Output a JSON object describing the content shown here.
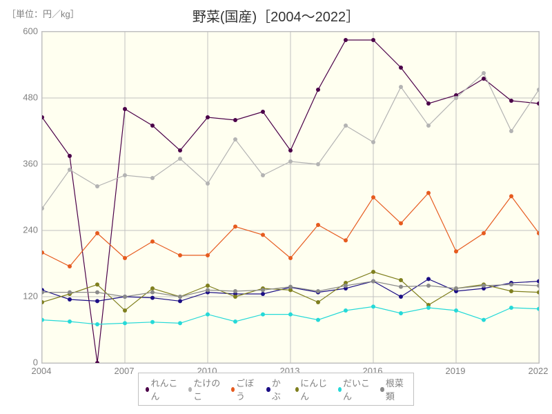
{
  "chart": {
    "title": "野菜(国産)［2004～2022］",
    "y_unit_label": "［単位：円／kg］",
    "title_fontsize": 20,
    "label_fontsize": 13,
    "plot_bg": "#fffff0",
    "page_bg": "#ffffff",
    "grid_color": "#c0c0c0",
    "axis_text_color": "#808080",
    "type": "line",
    "xlim": [
      2004,
      2022
    ],
    "ylim": [
      0,
      600
    ],
    "x_ticks": [
      2004,
      2007,
      2010,
      2013,
      2016,
      2019,
      2022
    ],
    "y_ticks": [
      0,
      120,
      240,
      360,
      480,
      600
    ],
    "x_values": [
      2004,
      2005,
      2006,
      2007,
      2008,
      2009,
      2010,
      2011,
      2012,
      2013,
      2014,
      2015,
      2016,
      2017,
      2018,
      2019,
      2020,
      2021,
      2022
    ],
    "marker_radius": 3,
    "line_width": 1.2,
    "series": [
      {
        "name": "れんこん",
        "color": "#4b0049",
        "values": [
          445,
          375,
          0,
          460,
          430,
          385,
          445,
          440,
          455,
          385,
          495,
          585,
          585,
          535,
          470,
          485,
          515,
          475,
          470
        ]
      },
      {
        "name": "たけのこ",
        "color": "#b3b3b3",
        "values": [
          280,
          350,
          320,
          340,
          335,
          370,
          325,
          405,
          340,
          365,
          360,
          430,
          400,
          500,
          430,
          480,
          525,
          420,
          495
        ]
      },
      {
        "name": "ごぼう",
        "color": "#e65b1f",
        "values": [
          200,
          175,
          235,
          190,
          220,
          195,
          195,
          247,
          232,
          190,
          250,
          222,
          300,
          253,
          308,
          202,
          235,
          302,
          235
        ]
      },
      {
        "name": "かぶ",
        "color": "#1b0e85",
        "values": [
          132,
          115,
          112,
          120,
          118,
          112,
          128,
          125,
          125,
          137,
          128,
          135,
          148,
          120,
          152,
          130,
          135,
          145,
          148
        ]
      },
      {
        "name": "にんじん",
        "color": "#7f7f1e",
        "values": [
          110,
          125,
          142,
          95,
          135,
          120,
          140,
          120,
          135,
          132,
          110,
          145,
          165,
          150,
          105,
          135,
          142,
          130,
          128
        ]
      },
      {
        "name": "だいこん",
        "color": "#25d9d8",
        "values": [
          78,
          75,
          70,
          72,
          74,
          72,
          88,
          75,
          88,
          88,
          78,
          95,
          102,
          90,
          100,
          95,
          78,
          100,
          98
        ]
      },
      {
        "name": "根菜類",
        "color": "#8a8a8a",
        "values": [
          128,
          128,
          128,
          120,
          128,
          120,
          132,
          130,
          132,
          138,
          130,
          140,
          148,
          138,
          140,
          135,
          140,
          142,
          140
        ]
      }
    ],
    "legend_items": [
      {
        "label": "れんこん",
        "color": "#4b0049"
      },
      {
        "label": "たけのこ",
        "color": "#b3b3b3"
      },
      {
        "label": "ごぼう",
        "color": "#e65b1f"
      },
      {
        "label": "かぶ",
        "color": "#1b0e85"
      },
      {
        "label": "にんじん",
        "color": "#7f7f1e"
      },
      {
        "label": "だいこん",
        "color": "#25d9d8"
      },
      {
        "label": "根菜類",
        "color": "#8a8a8a"
      }
    ]
  }
}
